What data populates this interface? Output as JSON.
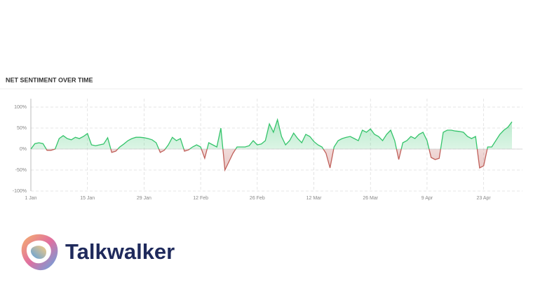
{
  "chart_data": {
    "type": "area",
    "title": "NET SENTIMENT OVER TIME",
    "categories": [
      "1 Jan",
      null,
      null,
      null,
      null,
      null,
      null,
      null,
      null,
      null,
      null,
      null,
      null,
      null,
      "15 Jan",
      null,
      null,
      null,
      null,
      null,
      null,
      null,
      null,
      null,
      null,
      null,
      null,
      null,
      "29 Jan",
      null,
      null,
      null,
      null,
      null,
      null,
      null,
      null,
      null,
      null,
      null,
      null,
      null,
      "12 Feb",
      null,
      null,
      null,
      null,
      null,
      null,
      null,
      null,
      null,
      null,
      null,
      null,
      null,
      "26 Feb",
      null,
      null,
      null,
      null,
      null,
      null,
      null,
      null,
      null,
      null,
      null,
      null,
      null,
      "12 Mar",
      null,
      null,
      null,
      null,
      null,
      null,
      null,
      null,
      null,
      null,
      null,
      null,
      null,
      "26 Mar",
      null,
      null,
      null,
      null,
      null,
      null,
      null,
      null,
      null,
      null,
      null,
      null,
      null,
      "9 Apr",
      null,
      null,
      null,
      null,
      null,
      null,
      null,
      null,
      null,
      null,
      null,
      null,
      null,
      "23 Apr",
      null,
      null,
      null,
      null,
      null,
      null,
      null
    ],
    "values": [
      0,
      13,
      15,
      13,
      -3,
      -3,
      0,
      25,
      32,
      25,
      22,
      28,
      25,
      30,
      37,
      10,
      8,
      10,
      12,
      27,
      -8,
      -5,
      5,
      12,
      20,
      25,
      28,
      28,
      27,
      25,
      22,
      15,
      -8,
      -3,
      10,
      28,
      20,
      25,
      -5,
      -2,
      5,
      10,
      5,
      -22,
      15,
      10,
      5,
      50,
      -50,
      -30,
      -10,
      5,
      5,
      5,
      8,
      20,
      10,
      12,
      20,
      60,
      40,
      70,
      30,
      10,
      20,
      38,
      25,
      15,
      35,
      30,
      18,
      10,
      5,
      -10,
      -45,
      5,
      20,
      25,
      28,
      30,
      25,
      20,
      45,
      40,
      48,
      35,
      30,
      20,
      35,
      45,
      20,
      -25,
      15,
      20,
      30,
      25,
      35,
      40,
      20,
      -20,
      -25,
      -22,
      40,
      45,
      45,
      43,
      42,
      40,
      30,
      25,
      30,
      -45,
      -40,
      5,
      5,
      20,
      35,
      45,
      52,
      65
    ],
    "color": "#35c46b",
    "negative_color": "#c0605a",
    "ylim": [
      -100,
      100
    ],
    "yticks": [
      {
        "value": -100,
        "label": "-100%"
      },
      {
        "value": -50,
        "label": "-50%"
      },
      {
        "value": 0,
        "label": "0%"
      },
      {
        "value": 50,
        "label": "50%"
      },
      {
        "value": 100,
        "label": "100%"
      }
    ],
    "grid": true
  },
  "brand": "Talkwalker"
}
